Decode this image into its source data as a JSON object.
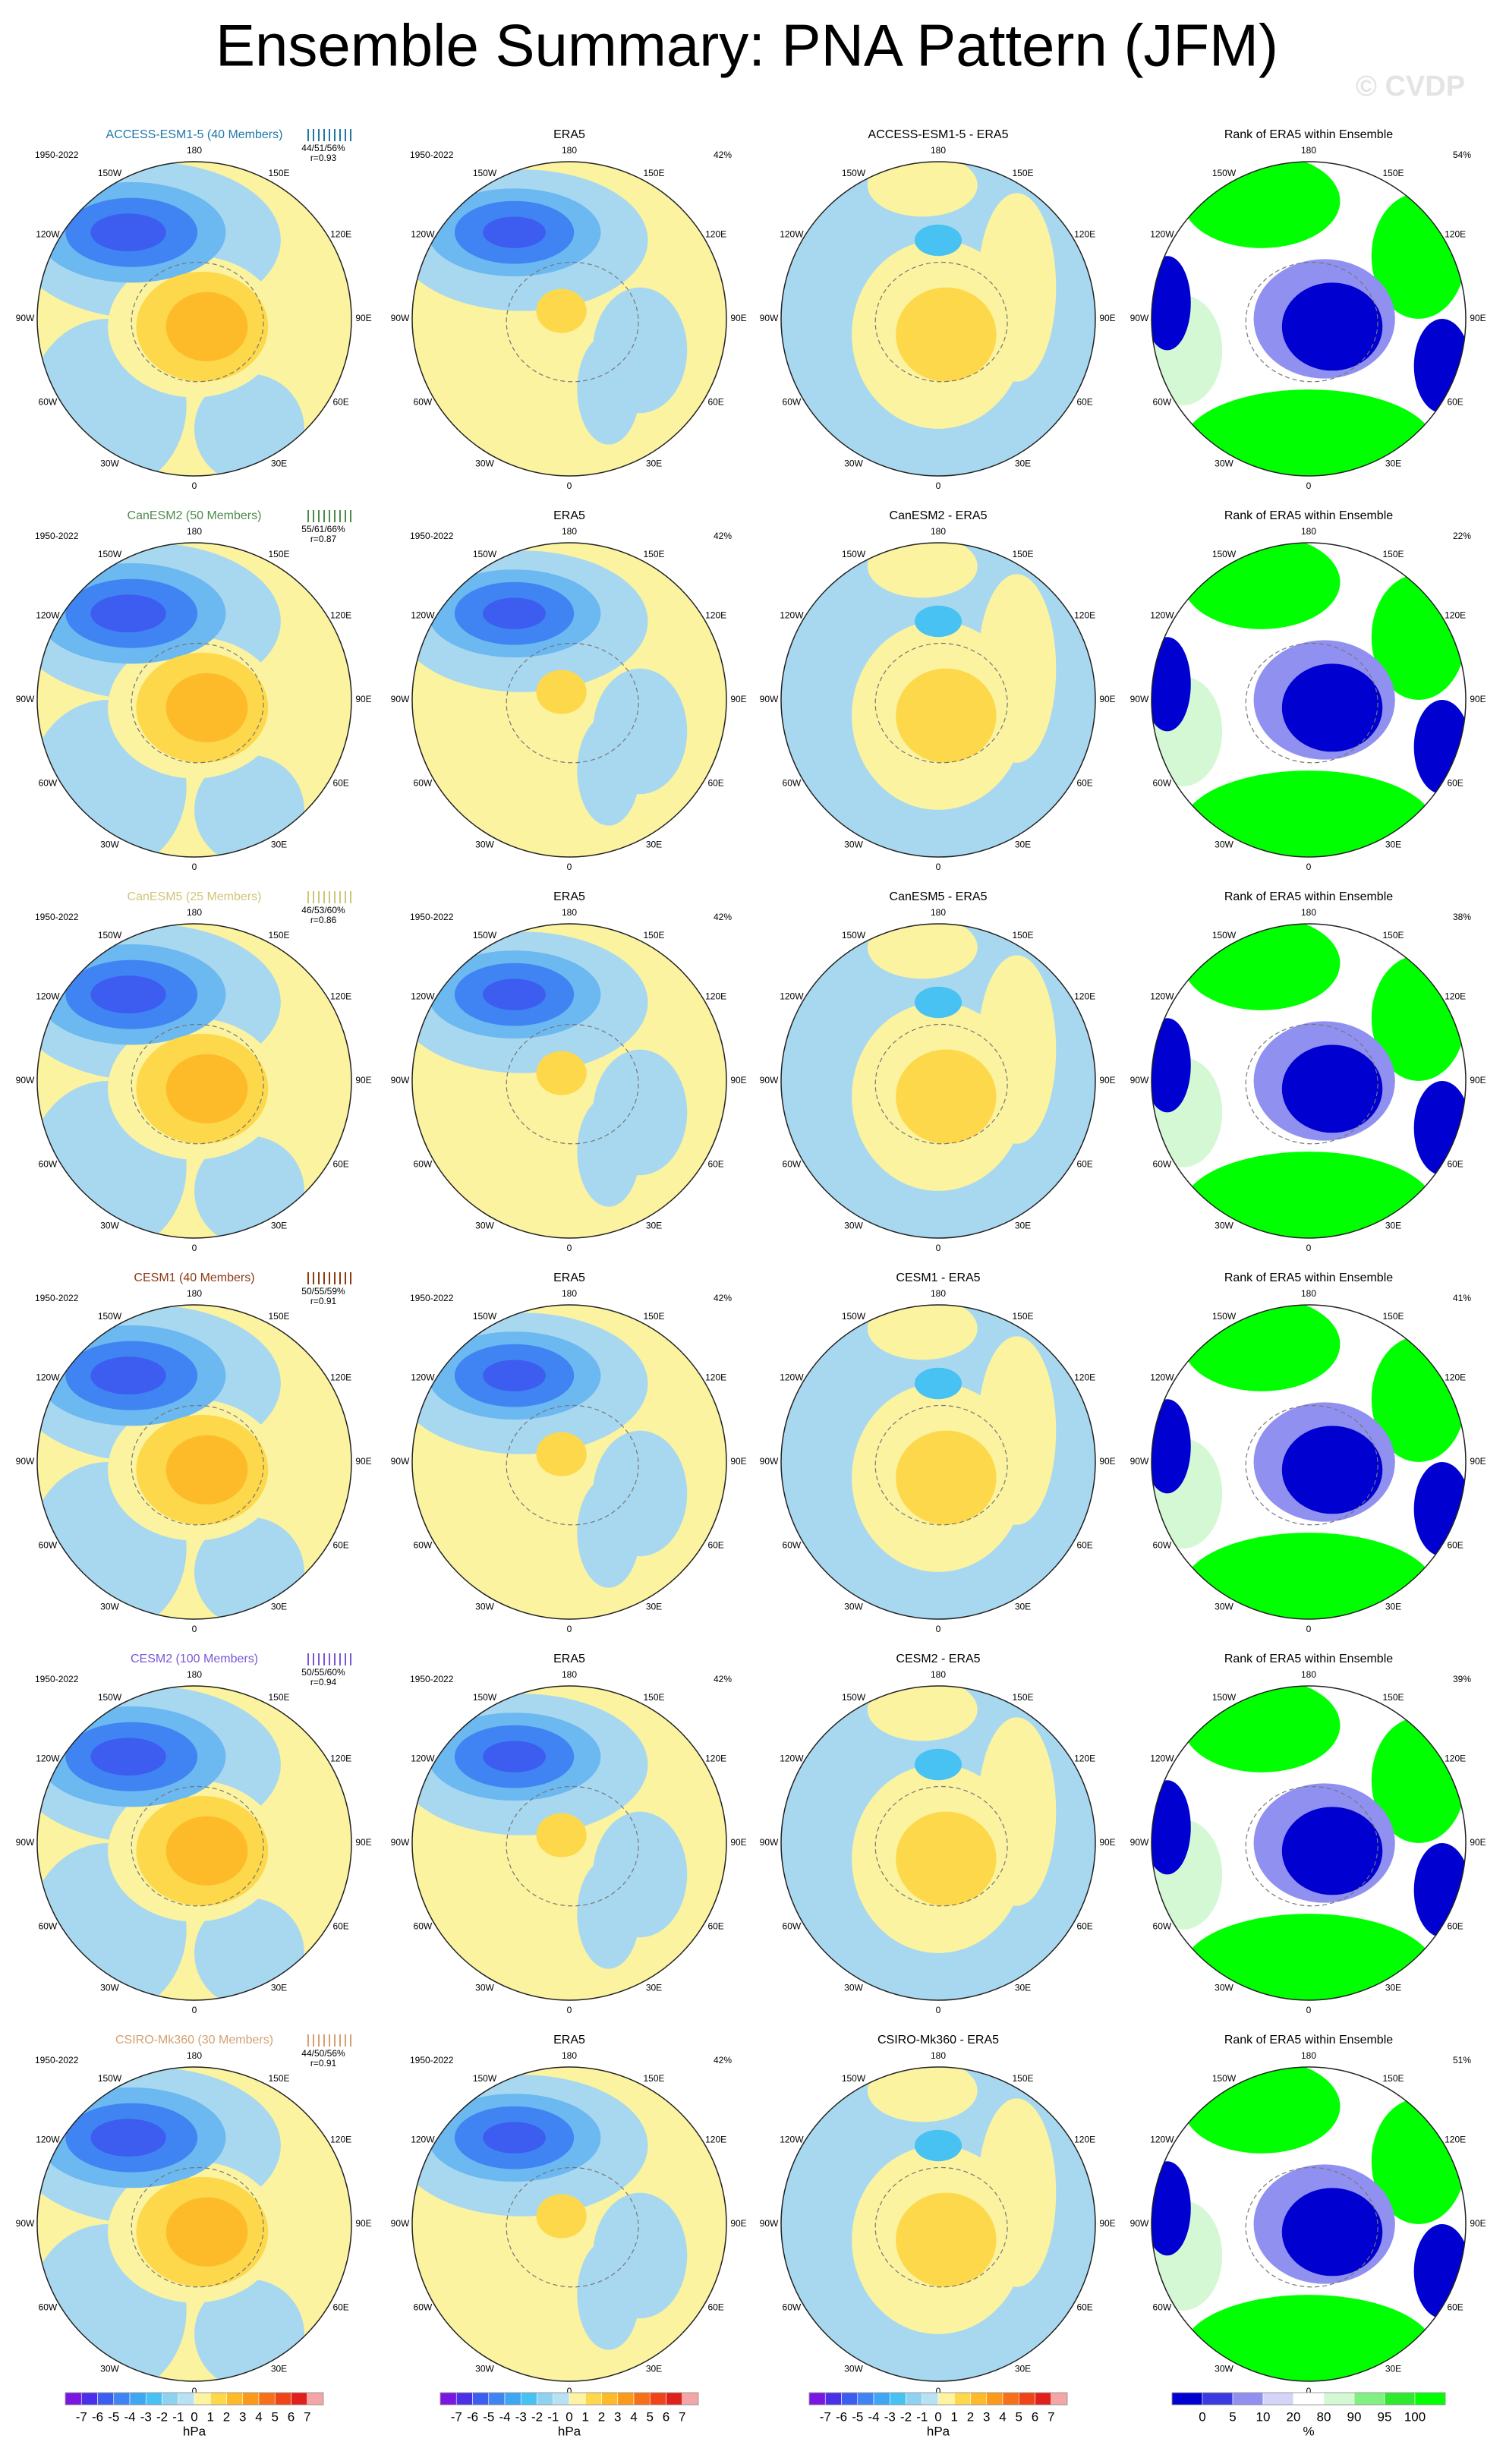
{
  "title": "Ensemble Summary: PNA Pattern (JFM)",
  "watermark": "© CVDP",
  "lon_labels": [
    "180",
    "150E",
    "120E",
    "90E",
    "60E",
    "30E",
    "0",
    "30W",
    "60W",
    "90W",
    "120W",
    "150W"
  ],
  "rows": [
    {
      "model": "ACCESS-ESM1-5 (40 Members)",
      "model_color": "#1f78a8",
      "period": "1950-2022",
      "stats": "44/51/56%",
      "r": "r=0.93",
      "obs_title": "ERA5",
      "obs_period": "1950-2022",
      "obs_pct": "42%",
      "diff_title": "ACCESS-ESM1-5 - ERA5",
      "rank_title": "Rank of ERA5 within Ensemble",
      "rank_pct": "54%"
    },
    {
      "model": "CanESM2 (50 Members)",
      "model_color": "#4e8a4e",
      "period": "1950-2022",
      "stats": "55/61/66%",
      "r": "r=0.87",
      "obs_title": "ERA5",
      "obs_period": "1950-2022",
      "obs_pct": "42%",
      "diff_title": "CanESM2 - ERA5",
      "rank_title": "Rank of ERA5 within Ensemble",
      "rank_pct": "22%"
    },
    {
      "model": "CanESM5 (25 Members)",
      "model_color": "#cdc678",
      "period": "1950-2022",
      "stats": "46/53/60%",
      "r": "r=0.86",
      "obs_title": "ERA5",
      "obs_period": "1950-2022",
      "obs_pct": "42%",
      "diff_title": "CanESM5 - ERA5",
      "rank_title": "Rank of ERA5 within Ensemble",
      "rank_pct": "38%"
    },
    {
      "model": "CESM1 (40 Members)",
      "model_color": "#8b3a12",
      "period": "1950-2022",
      "stats": "50/55/59%",
      "r": "r=0.91",
      "obs_title": "ERA5",
      "obs_period": "1950-2022",
      "obs_pct": "42%",
      "diff_title": "CESM1 - ERA5",
      "rank_title": "Rank of ERA5 within Ensemble",
      "rank_pct": "41%"
    },
    {
      "model": "CESM2 (100 Members)",
      "model_color": "#7a55d8",
      "period": "1950-2022",
      "stats": "50/55/60%",
      "r": "r=0.94",
      "obs_title": "ERA5",
      "obs_period": "1950-2022",
      "obs_pct": "42%",
      "diff_title": "CESM2 - ERA5",
      "rank_title": "Rank of ERA5 within Ensemble",
      "rank_pct": "39%"
    },
    {
      "model": "CSIRO-Mk360 (30 Members)",
      "model_color": "#d4a070",
      "period": "1950-2022",
      "stats": "44/50/56%",
      "r": "r=0.91",
      "obs_title": "ERA5",
      "obs_period": "1950-2022",
      "obs_pct": "42%",
      "diff_title": "CSIRO-Mk360 - ERA5",
      "rank_title": "Rank of ERA5 within Ensemble",
      "rank_pct": "51%"
    }
  ],
  "colorbars": {
    "hpa": {
      "ticks": [
        "-7",
        "-6",
        "-5",
        "-4",
        "-3",
        "-2",
        "-1",
        "0",
        "1",
        "2",
        "3",
        "4",
        "5",
        "6",
        "7"
      ],
      "unit": "hPa",
      "colors": [
        "#7b16e0",
        "#4b2fe8",
        "#3d5cf0",
        "#3f84f2",
        "#3fa6f4",
        "#48c2f2",
        "#8fd2f0",
        "#b8e2f4",
        "#fdf3a0",
        "#fdd84a",
        "#fdbb2a",
        "#fb9a1a",
        "#f57018",
        "#ee4418",
        "#e0201a",
        "#f4a6a6"
      ]
    },
    "rank": {
      "ticks": [
        "0",
        "5",
        "10",
        "20",
        "80",
        "90",
        "95",
        "100"
      ],
      "unit": "%",
      "colors": [
        "#0000d0",
        "#3a3ae0",
        "#9090f0",
        "#d4d4f8",
        "#ffffff",
        "#d4f8d4",
        "#80f080",
        "#30e830",
        "#00ff00"
      ]
    }
  }
}
